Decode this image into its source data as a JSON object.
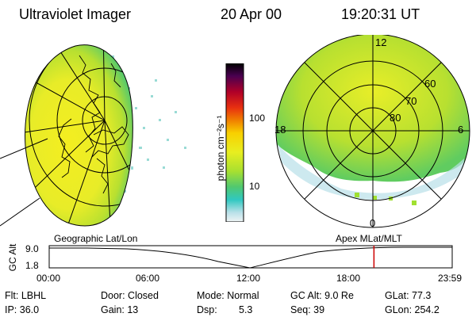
{
  "header": {
    "title": "Ultraviolet Imager",
    "date": "20 Apr 00",
    "time": "19:20:31 UT"
  },
  "colorbar": {
    "unit_label": "photon cm⁻²s⁻¹",
    "ticks": [
      "100",
      "10"
    ]
  },
  "polar_plot": {
    "mlt_labels": [
      "12",
      "18",
      "6",
      "0"
    ],
    "lat_labels": [
      "60",
      "70",
      "80"
    ]
  },
  "projection_labels": {
    "left": "Geographic Lat/Lon",
    "right": "Apex MLat/MLT"
  },
  "gc_alt_plot": {
    "axis_label": "GC Alt",
    "y_ticks": [
      "9.0",
      "1.8"
    ],
    "x_ticks": [
      "00:00",
      "06:00",
      "12:00",
      "18:00",
      "23:59"
    ],
    "marker_time_hours": 19.34
  },
  "info": {
    "flt": "Flt: LBHL",
    "ip": "IP: 36.0",
    "door": "Door: Closed",
    "gain": "Gain: 13",
    "mode": "Mode: Normal",
    "dsp_label": "Dsp:",
    "dsp_value": "5.3",
    "gc_alt": "GC Alt: 9.0 Re",
    "seq": "Seq: 39",
    "glat": "GLat: 77.3",
    "glon": "GLon: 254.2"
  },
  "colors": {
    "emission_high": "#f4ee20",
    "emission_mid": "#a8e030",
    "emission_low": "#38c878",
    "marker_line": "#cc0000"
  }
}
